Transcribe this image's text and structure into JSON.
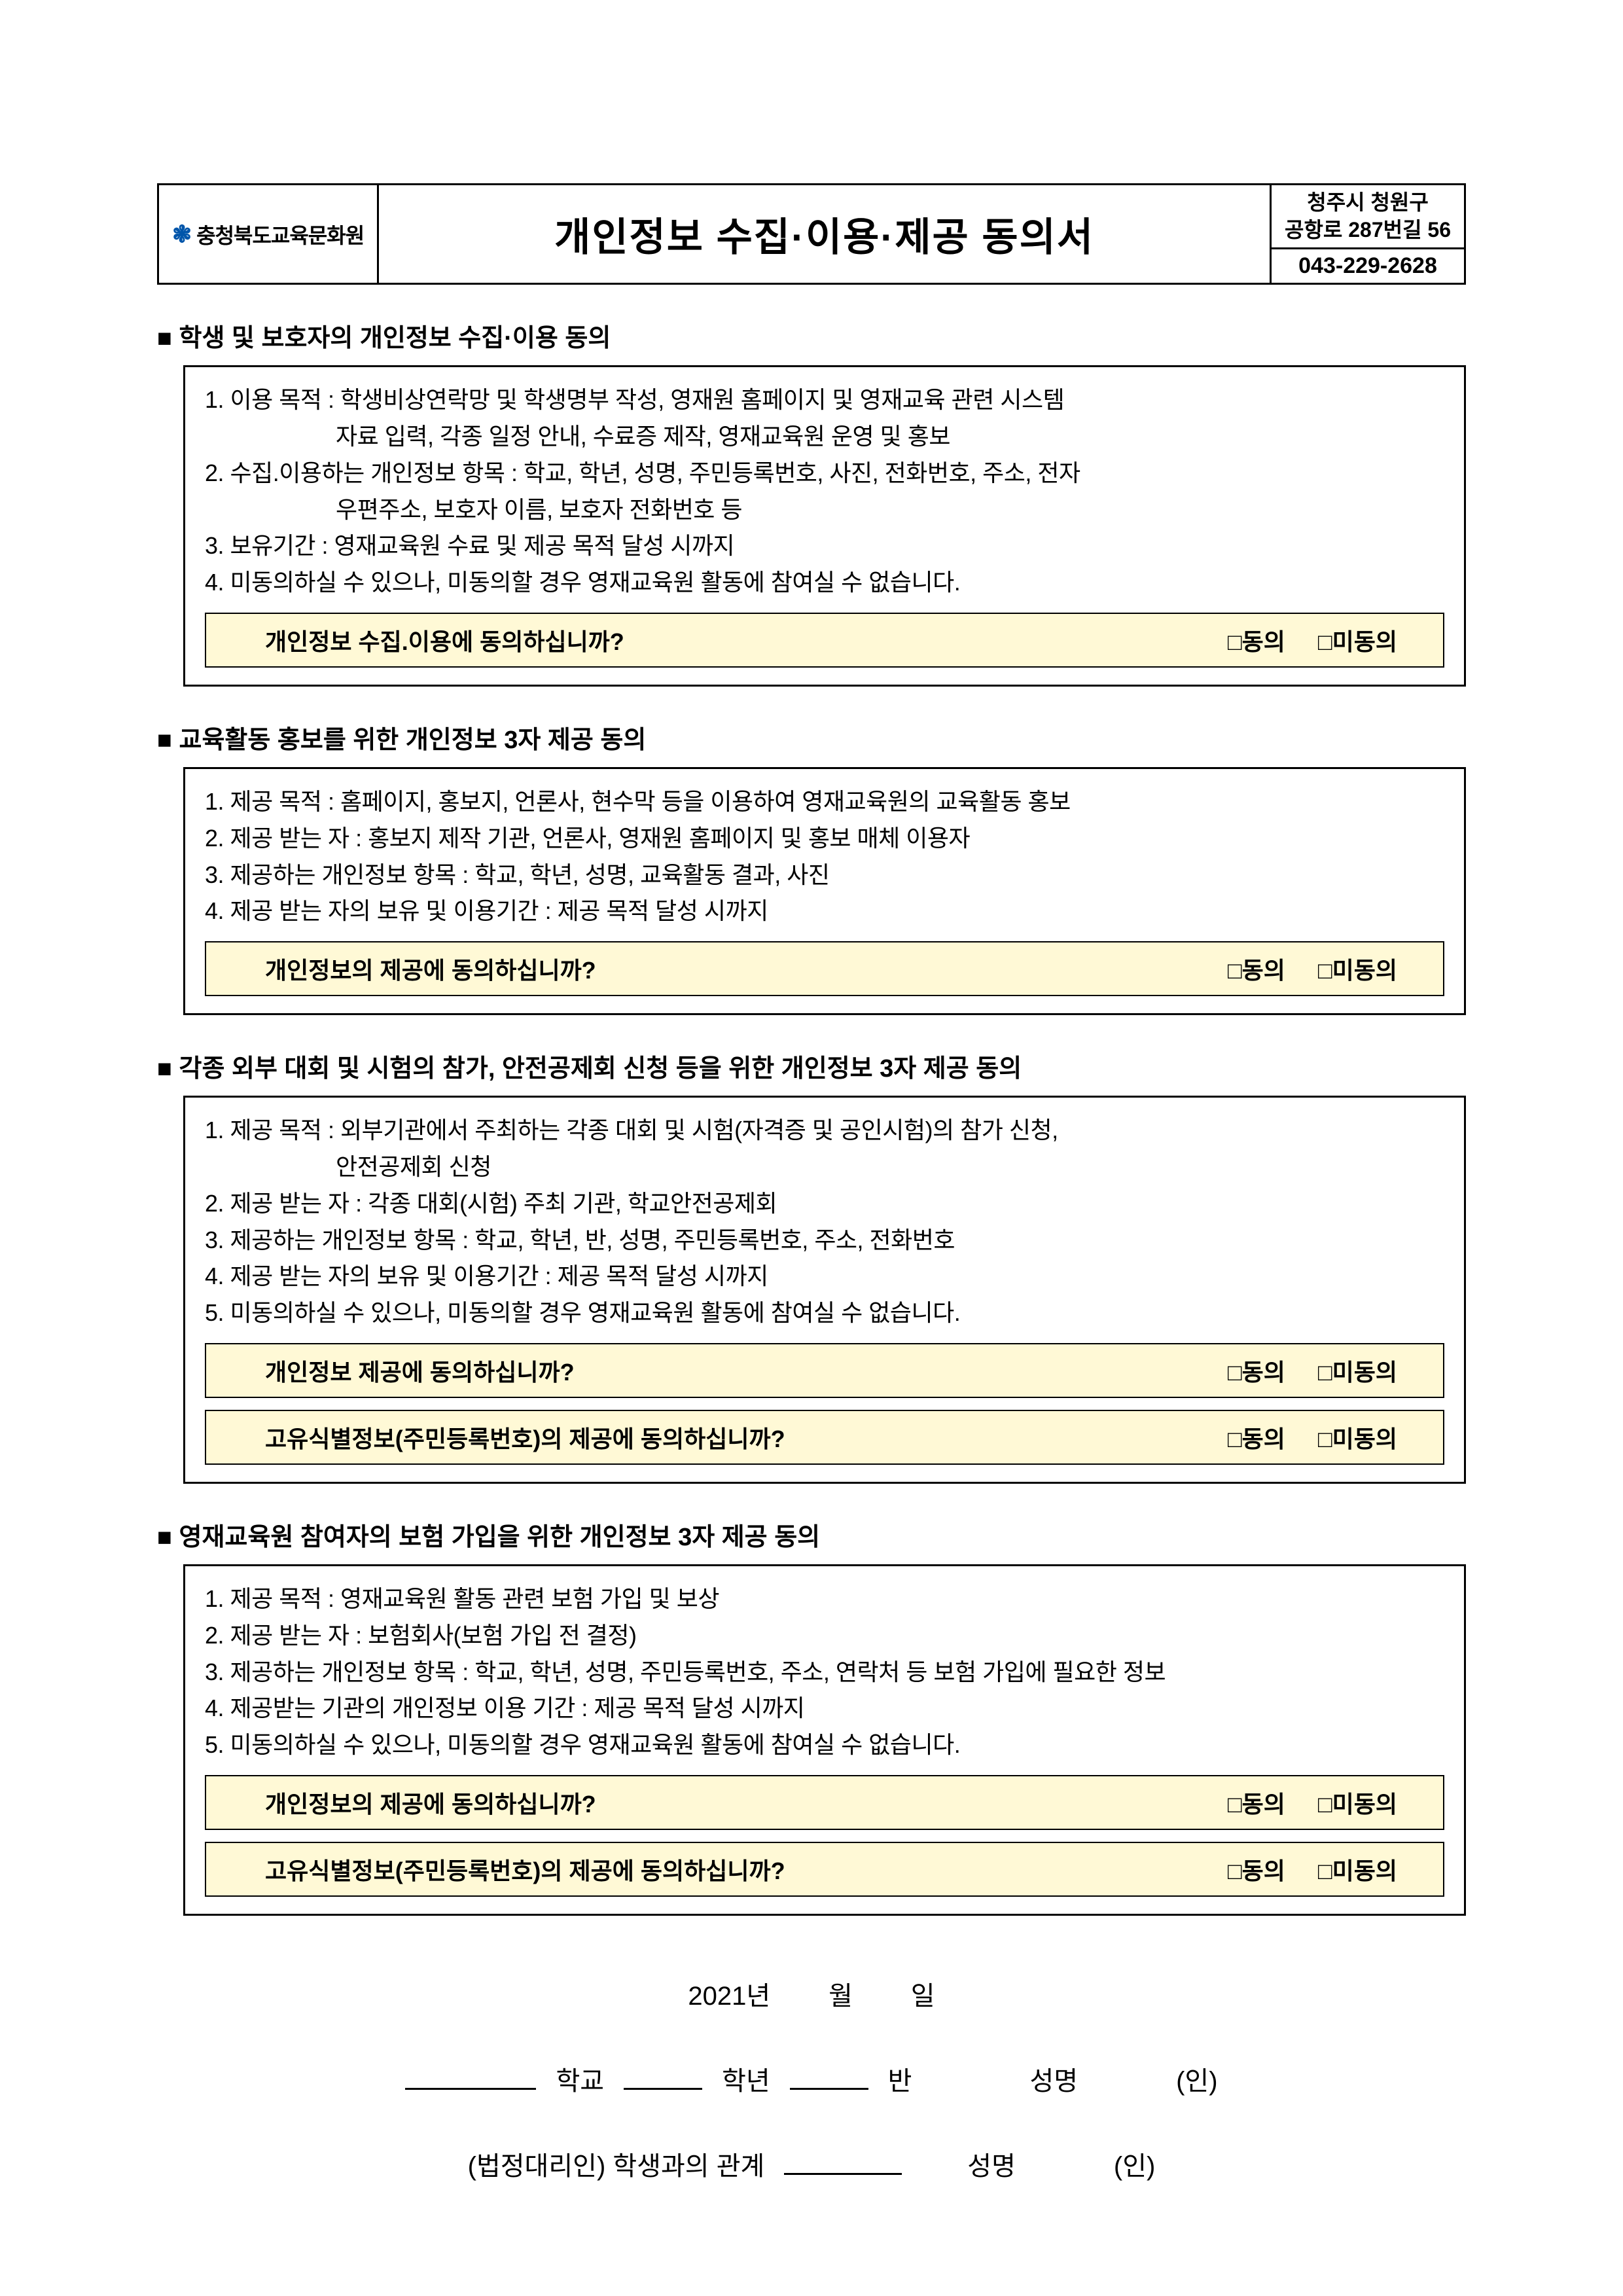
{
  "header": {
    "logo_text": "충청북도교육문화원",
    "title": "개인정보 수집·이용·제공 동의서",
    "address": "청주시 청원구\n공항로 287번길 56",
    "phone": "043-229-2628"
  },
  "sections": [
    {
      "title": "학생 및 보호자의 개인정보 수집·이용 동의",
      "lines": [
        "1. 이용 목적 : 학생비상연락망 및 학생명부 작성, 영재원 홈페이지 및 영재교육 관련 시스템",
        "자료 입력, 각종 일정 안내, 수료증 제작, 영재교육원 운영 및 홍보",
        "2. 수집.이용하는 개인정보 항목 : 학교, 학년, 성명, 주민등록번호, 사진, 전화번호, 주소, 전자",
        "우편주소, 보호자 이름, 보호자 전화번호 등",
        "3. 보유기간 : 영재교육원 수료 및 제공 목적 달성 시까지",
        "4. 미동의하실 수 있으나, 미동의할 경우 영재교육원 활동에 참여실 수 없습니다."
      ],
      "indents": [
        false,
        true,
        false,
        true,
        false,
        false
      ],
      "consents": [
        {
          "q": "개인정보 수집.이용에 동의하십니까?",
          "agree": "□동의",
          "disagree": "□미동의"
        }
      ]
    },
    {
      "title": "교육활동 홍보를 위한 개인정보 3자 제공 동의",
      "lines": [
        "1. 제공 목적 : 홈페이지, 홍보지, 언론사, 현수막 등을 이용하여 영재교육원의 교육활동 홍보",
        "2. 제공 받는 자 : 홍보지 제작 기관, 언론사, 영재원 홈페이지 및 홍보 매체 이용자",
        "3. 제공하는 개인정보 항목 : 학교, 학년, 성명, 교육활동 결과, 사진",
        "4. 제공 받는 자의 보유 및 이용기간 : 제공 목적 달성 시까지"
      ],
      "indents": [
        false,
        false,
        false,
        false
      ],
      "consents": [
        {
          "q": "개인정보의 제공에 동의하십니까?",
          "agree": "□동의",
          "disagree": "□미동의"
        }
      ]
    },
    {
      "title": "각종 외부 대회 및 시험의 참가, 안전공제회 신청 등을 위한 개인정보 3자 제공 동의",
      "lines": [
        "1. 제공 목적 : 외부기관에서 주최하는 각종 대회 및 시험(자격증 및 공인시험)의 참가 신청,",
        "안전공제회 신청",
        "2. 제공 받는 자 : 각종 대회(시험) 주최 기관, 학교안전공제회",
        "3. 제공하는 개인정보 항목 : 학교, 학년, 반, 성명, 주민등록번호, 주소, 전화번호",
        "4. 제공 받는 자의 보유 및 이용기간 : 제공 목적 달성 시까지",
        "5. 미동의하실 수 있으나, 미동의할 경우 영재교육원 활동에 참여실 수 없습니다."
      ],
      "indents": [
        false,
        true,
        false,
        false,
        false,
        false
      ],
      "consents": [
        {
          "q": "개인정보 제공에 동의하십니까?",
          "agree": "□동의",
          "disagree": "□미동의"
        },
        {
          "q": "고유식별정보(주민등록번호)의 제공에 동의하십니까?",
          "agree": "□동의",
          "disagree": "□미동의"
        }
      ]
    },
    {
      "title": "영재교육원 참여자의 보험 가입을 위한 개인정보 3자 제공 동의",
      "lines": [
        "1. 제공 목적 : 영재교육원 활동 관련 보험 가입 및 보상",
        "2. 제공 받는 자 : 보험회사(보험 가입 전 결정)",
        "3. 제공하는 개인정보 항목 : 학교, 학년, 성명, 주민등록번호, 주소, 연락처 등 보험 가입에 필요한 정보",
        "4. 제공받는 기관의 개인정보 이용 기간 : 제공 목적 달성 시까지",
        "5. 미동의하실 수 있으나, 미동의할 경우 영재교육원 활동에 참여실 수 없습니다."
      ],
      "indents": [
        false,
        false,
        false,
        false,
        false
      ],
      "consents": [
        {
          "q": "개인정보의 제공에 동의하십니까?",
          "agree": "□동의",
          "disagree": "□미동의"
        },
        {
          "q": "고유식별정보(주민등록번호)의 제공에 동의하십니까?",
          "agree": "□동의",
          "disagree": "□미동의"
        }
      ]
    }
  ],
  "signature": {
    "year": "2021년",
    "month": "월",
    "day": "일",
    "school": "학교",
    "grade": "학년",
    "class": "반",
    "name_label": "성명",
    "seal": "(인)",
    "guardian_prefix": "(법정대리인) 학생과의 관계"
  },
  "colors": {
    "consent_bg": "#fff9d6",
    "text": "#000000",
    "logo_accent": "#0055aa"
  }
}
